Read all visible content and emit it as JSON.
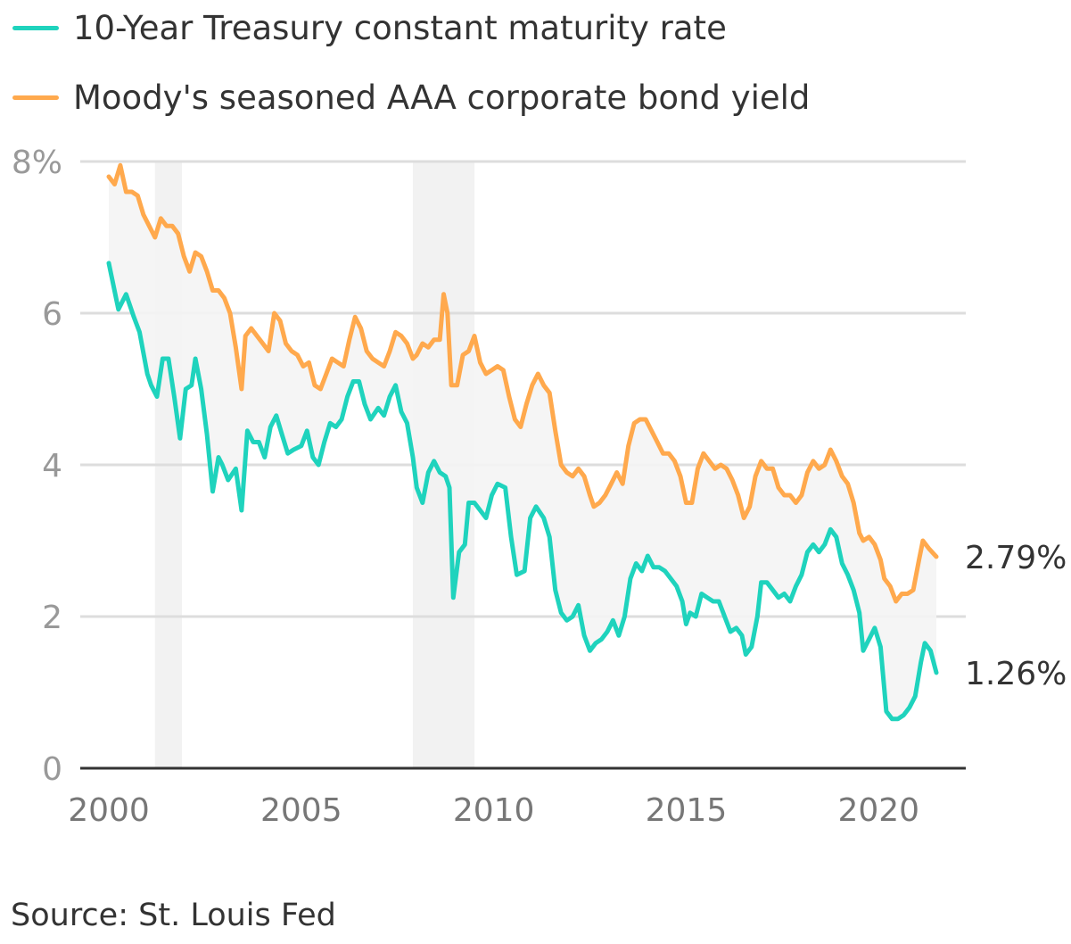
{
  "colors": {
    "treasury": "#1fd3bd",
    "moody": "#ffa94d",
    "recession_band": "#f2f2f2",
    "gap_fill": "#f4f4f4",
    "grid": "#dddddd",
    "axis": "#333333",
    "tick_text": "#999999",
    "year_text": "#777777",
    "end_label_text": "#333333"
  },
  "source": "Source: St. Louis Fed",
  "chart_data": {
    "type": "line",
    "x_unit": "year",
    "xlim": [
      2000,
      2021.5
    ],
    "ylim": [
      0,
      8
    ],
    "y_ticks": [
      0,
      2,
      4,
      6,
      8
    ],
    "y_tick_labels": [
      "0",
      "2",
      "4",
      "6",
      "8%"
    ],
    "x_ticks": [
      2000,
      2005,
      2010,
      2015,
      2020
    ],
    "x_tick_labels": [
      "2000",
      "2005",
      "2010",
      "2015",
      "2020"
    ],
    "grid": true,
    "legend_position": "top-left",
    "shaded_periods": [
      [
        2001.2,
        2001.9
      ],
      [
        2007.9,
        2009.5
      ]
    ],
    "series": [
      {
        "name": "10-Year Treasury constant maturity rate",
        "end_label": "1.26%",
        "points": [
          [
            2000.0,
            6.66
          ],
          [
            2000.25,
            6.05
          ],
          [
            2000.45,
            6.25
          ],
          [
            2000.65,
            5.95
          ],
          [
            2000.8,
            5.75
          ],
          [
            2001.0,
            5.2
          ],
          [
            2001.1,
            5.05
          ],
          [
            2001.25,
            4.9
          ],
          [
            2001.4,
            5.4
          ],
          [
            2001.55,
            5.4
          ],
          [
            2001.7,
            4.9
          ],
          [
            2001.85,
            4.35
          ],
          [
            2002.0,
            5.0
          ],
          [
            2002.15,
            5.05
          ],
          [
            2002.25,
            5.4
          ],
          [
            2002.4,
            5.0
          ],
          [
            2002.55,
            4.4
          ],
          [
            2002.7,
            3.65
          ],
          [
            2002.85,
            4.1
          ],
          [
            2002.95,
            4.0
          ],
          [
            2003.1,
            3.8
          ],
          [
            2003.3,
            3.95
          ],
          [
            2003.45,
            3.4
          ],
          [
            2003.6,
            4.45
          ],
          [
            2003.75,
            4.3
          ],
          [
            2003.9,
            4.3
          ],
          [
            2004.05,
            4.1
          ],
          [
            2004.2,
            4.5
          ],
          [
            2004.35,
            4.65
          ],
          [
            2004.5,
            4.4
          ],
          [
            2004.65,
            4.15
          ],
          [
            2004.8,
            4.2
          ],
          [
            2005.0,
            4.25
          ],
          [
            2005.15,
            4.45
          ],
          [
            2005.3,
            4.1
          ],
          [
            2005.45,
            4.0
          ],
          [
            2005.6,
            4.3
          ],
          [
            2005.75,
            4.55
          ],
          [
            2005.9,
            4.5
          ],
          [
            2006.05,
            4.6
          ],
          [
            2006.2,
            4.9
          ],
          [
            2006.35,
            5.1
          ],
          [
            2006.5,
            5.1
          ],
          [
            2006.65,
            4.8
          ],
          [
            2006.8,
            4.6
          ],
          [
            2007.0,
            4.75
          ],
          [
            2007.15,
            4.65
          ],
          [
            2007.3,
            4.9
          ],
          [
            2007.45,
            5.05
          ],
          [
            2007.6,
            4.7
          ],
          [
            2007.75,
            4.55
          ],
          [
            2007.9,
            4.1
          ],
          [
            2008.0,
            3.7
          ],
          [
            2008.15,
            3.5
          ],
          [
            2008.3,
            3.9
          ],
          [
            2008.45,
            4.05
          ],
          [
            2008.6,
            3.9
          ],
          [
            2008.75,
            3.85
          ],
          [
            2008.85,
            3.7
          ],
          [
            2008.95,
            2.25
          ],
          [
            2009.1,
            2.85
          ],
          [
            2009.25,
            2.95
          ],
          [
            2009.35,
            3.5
          ],
          [
            2009.5,
            3.5
          ],
          [
            2009.65,
            3.4
          ],
          [
            2009.8,
            3.3
          ],
          [
            2009.95,
            3.6
          ],
          [
            2010.1,
            3.75
          ],
          [
            2010.3,
            3.7
          ],
          [
            2010.45,
            3.05
          ],
          [
            2010.6,
            2.55
          ],
          [
            2010.8,
            2.6
          ],
          [
            2010.95,
            3.3
          ],
          [
            2011.1,
            3.45
          ],
          [
            2011.3,
            3.3
          ],
          [
            2011.45,
            3.05
          ],
          [
            2011.6,
            2.35
          ],
          [
            2011.75,
            2.05
          ],
          [
            2011.9,
            1.95
          ],
          [
            2012.05,
            2.0
          ],
          [
            2012.2,
            2.15
          ],
          [
            2012.35,
            1.75
          ],
          [
            2012.5,
            1.55
          ],
          [
            2012.65,
            1.65
          ],
          [
            2012.8,
            1.7
          ],
          [
            2012.95,
            1.8
          ],
          [
            2013.1,
            1.95
          ],
          [
            2013.25,
            1.75
          ],
          [
            2013.4,
            2.0
          ],
          [
            2013.55,
            2.5
          ],
          [
            2013.7,
            2.7
          ],
          [
            2013.85,
            2.6
          ],
          [
            2014.0,
            2.8
          ],
          [
            2014.15,
            2.65
          ],
          [
            2014.3,
            2.65
          ],
          [
            2014.45,
            2.6
          ],
          [
            2014.6,
            2.5
          ],
          [
            2014.75,
            2.4
          ],
          [
            2014.9,
            2.2
          ],
          [
            2015.0,
            1.9
          ],
          [
            2015.1,
            2.05
          ],
          [
            2015.25,
            2.0
          ],
          [
            2015.4,
            2.3
          ],
          [
            2015.55,
            2.25
          ],
          [
            2015.7,
            2.2
          ],
          [
            2015.85,
            2.2
          ],
          [
            2016.0,
            2.0
          ],
          [
            2016.15,
            1.8
          ],
          [
            2016.3,
            1.85
          ],
          [
            2016.45,
            1.75
          ],
          [
            2016.55,
            1.5
          ],
          [
            2016.7,
            1.6
          ],
          [
            2016.85,
            2.0
          ],
          [
            2016.95,
            2.45
          ],
          [
            2017.1,
            2.45
          ],
          [
            2017.25,
            2.35
          ],
          [
            2017.4,
            2.25
          ],
          [
            2017.55,
            2.3
          ],
          [
            2017.7,
            2.2
          ],
          [
            2017.85,
            2.4
          ],
          [
            2018.0,
            2.55
          ],
          [
            2018.15,
            2.85
          ],
          [
            2018.3,
            2.95
          ],
          [
            2018.45,
            2.85
          ],
          [
            2018.6,
            2.95
          ],
          [
            2018.75,
            3.15
          ],
          [
            2018.9,
            3.05
          ],
          [
            2019.05,
            2.7
          ],
          [
            2019.2,
            2.55
          ],
          [
            2019.35,
            2.35
          ],
          [
            2019.5,
            2.05
          ],
          [
            2019.6,
            1.55
          ],
          [
            2019.75,
            1.7
          ],
          [
            2019.9,
            1.85
          ],
          [
            2020.05,
            1.6
          ],
          [
            2020.2,
            0.75
          ],
          [
            2020.35,
            0.65
          ],
          [
            2020.5,
            0.65
          ],
          [
            2020.65,
            0.7
          ],
          [
            2020.8,
            0.8
          ],
          [
            2020.95,
            0.95
          ],
          [
            2021.1,
            1.4
          ],
          [
            2021.2,
            1.65
          ],
          [
            2021.35,
            1.55
          ],
          [
            2021.5,
            1.26
          ]
        ]
      },
      {
        "name": "Moody's seasoned AAA corporate bond yield",
        "end_label": "2.79%",
        "points": [
          [
            2000.0,
            7.8
          ],
          [
            2000.15,
            7.7
          ],
          [
            2000.3,
            7.95
          ],
          [
            2000.45,
            7.6
          ],
          [
            2000.6,
            7.6
          ],
          [
            2000.75,
            7.55
          ],
          [
            2000.9,
            7.3
          ],
          [
            2001.05,
            7.15
          ],
          [
            2001.2,
            7.0
          ],
          [
            2001.35,
            7.25
          ],
          [
            2001.5,
            7.15
          ],
          [
            2001.65,
            7.15
          ],
          [
            2001.8,
            7.05
          ],
          [
            2001.95,
            6.75
          ],
          [
            2002.1,
            6.55
          ],
          [
            2002.25,
            6.8
          ],
          [
            2002.4,
            6.75
          ],
          [
            2002.55,
            6.55
          ],
          [
            2002.7,
            6.3
          ],
          [
            2002.85,
            6.3
          ],
          [
            2003.0,
            6.2
          ],
          [
            2003.15,
            6.0
          ],
          [
            2003.3,
            5.55
          ],
          [
            2003.45,
            5.0
          ],
          [
            2003.55,
            5.7
          ],
          [
            2003.7,
            5.8
          ],
          [
            2003.85,
            5.7
          ],
          [
            2004.0,
            5.6
          ],
          [
            2004.15,
            5.5
          ],
          [
            2004.3,
            6.0
          ],
          [
            2004.45,
            5.9
          ],
          [
            2004.6,
            5.6
          ],
          [
            2004.75,
            5.5
          ],
          [
            2004.9,
            5.45
          ],
          [
            2005.05,
            5.3
          ],
          [
            2005.2,
            5.35
          ],
          [
            2005.35,
            5.05
          ],
          [
            2005.5,
            5.0
          ],
          [
            2005.65,
            5.2
          ],
          [
            2005.8,
            5.4
          ],
          [
            2005.95,
            5.35
          ],
          [
            2006.1,
            5.3
          ],
          [
            2006.25,
            5.65
          ],
          [
            2006.4,
            5.95
          ],
          [
            2006.55,
            5.8
          ],
          [
            2006.7,
            5.5
          ],
          [
            2006.85,
            5.4
          ],
          [
            2007.0,
            5.35
          ],
          [
            2007.15,
            5.3
          ],
          [
            2007.3,
            5.5
          ],
          [
            2007.45,
            5.75
          ],
          [
            2007.6,
            5.7
          ],
          [
            2007.75,
            5.6
          ],
          [
            2007.9,
            5.4
          ],
          [
            2008.0,
            5.45
          ],
          [
            2008.15,
            5.6
          ],
          [
            2008.3,
            5.55
          ],
          [
            2008.45,
            5.65
          ],
          [
            2008.6,
            5.65
          ],
          [
            2008.7,
            6.25
          ],
          [
            2008.8,
            6.0
          ],
          [
            2008.9,
            5.05
          ],
          [
            2009.05,
            5.05
          ],
          [
            2009.2,
            5.45
          ],
          [
            2009.35,
            5.5
          ],
          [
            2009.5,
            5.7
          ],
          [
            2009.65,
            5.35
          ],
          [
            2009.8,
            5.2
          ],
          [
            2009.95,
            5.25
          ],
          [
            2010.1,
            5.3
          ],
          [
            2010.25,
            5.25
          ],
          [
            2010.4,
            4.9
          ],
          [
            2010.55,
            4.6
          ],
          [
            2010.7,
            4.5
          ],
          [
            2010.85,
            4.8
          ],
          [
            2011.0,
            5.05
          ],
          [
            2011.15,
            5.2
          ],
          [
            2011.3,
            5.05
          ],
          [
            2011.45,
            4.95
          ],
          [
            2011.6,
            4.45
          ],
          [
            2011.75,
            4.0
          ],
          [
            2011.9,
            3.9
          ],
          [
            2012.05,
            3.85
          ],
          [
            2012.2,
            3.95
          ],
          [
            2012.35,
            3.85
          ],
          [
            2012.5,
            3.6
          ],
          [
            2012.6,
            3.45
          ],
          [
            2012.75,
            3.5
          ],
          [
            2012.9,
            3.6
          ],
          [
            2013.05,
            3.75
          ],
          [
            2013.2,
            3.9
          ],
          [
            2013.35,
            3.75
          ],
          [
            2013.5,
            4.25
          ],
          [
            2013.65,
            4.55
          ],
          [
            2013.8,
            4.6
          ],
          [
            2013.95,
            4.6
          ],
          [
            2014.1,
            4.45
          ],
          [
            2014.25,
            4.3
          ],
          [
            2014.4,
            4.15
          ],
          [
            2014.55,
            4.15
          ],
          [
            2014.7,
            4.05
          ],
          [
            2014.85,
            3.85
          ],
          [
            2015.0,
            3.5
          ],
          [
            2015.15,
            3.5
          ],
          [
            2015.3,
            3.95
          ],
          [
            2015.45,
            4.15
          ],
          [
            2015.6,
            4.05
          ],
          [
            2015.75,
            3.95
          ],
          [
            2015.9,
            4.0
          ],
          [
            2016.05,
            3.95
          ],
          [
            2016.2,
            3.8
          ],
          [
            2016.35,
            3.6
          ],
          [
            2016.5,
            3.3
          ],
          [
            2016.65,
            3.45
          ],
          [
            2016.8,
            3.85
          ],
          [
            2016.95,
            4.05
          ],
          [
            2017.1,
            3.95
          ],
          [
            2017.25,
            3.95
          ],
          [
            2017.4,
            3.7
          ],
          [
            2017.55,
            3.6
          ],
          [
            2017.7,
            3.6
          ],
          [
            2017.85,
            3.5
          ],
          [
            2018.0,
            3.6
          ],
          [
            2018.15,
            3.9
          ],
          [
            2018.3,
            4.05
          ],
          [
            2018.45,
            3.95
          ],
          [
            2018.6,
            4.0
          ],
          [
            2018.75,
            4.2
          ],
          [
            2018.9,
            4.05
          ],
          [
            2019.05,
            3.85
          ],
          [
            2019.2,
            3.75
          ],
          [
            2019.35,
            3.5
          ],
          [
            2019.5,
            3.1
          ],
          [
            2019.6,
            3.0
          ],
          [
            2019.75,
            3.05
          ],
          [
            2019.9,
            2.95
          ],
          [
            2020.05,
            2.75
          ],
          [
            2020.15,
            2.5
          ],
          [
            2020.3,
            2.4
          ],
          [
            2020.45,
            2.2
          ],
          [
            2020.6,
            2.3
          ],
          [
            2020.75,
            2.3
          ],
          [
            2020.9,
            2.35
          ],
          [
            2021.05,
            2.75
          ],
          [
            2021.15,
            3.0
          ],
          [
            2021.3,
            2.9
          ],
          [
            2021.5,
            2.79
          ]
        ]
      }
    ]
  }
}
